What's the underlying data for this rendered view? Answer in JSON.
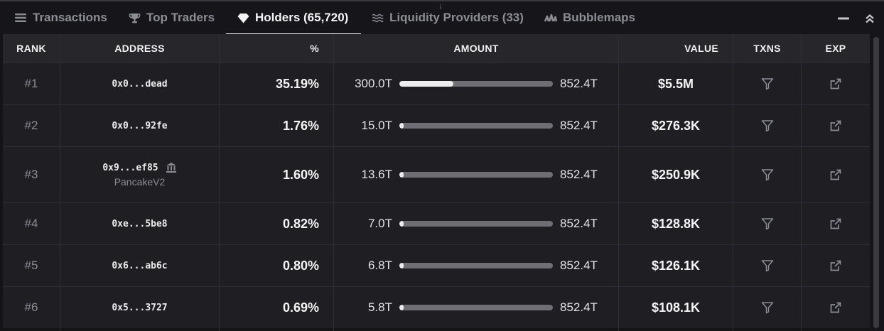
{
  "tabs": [
    {
      "label": "Transactions",
      "icon": "list-icon"
    },
    {
      "label": "Top Traders",
      "icon": "trophy-icon"
    },
    {
      "label": "Holders (65,720)",
      "icon": "diamond-icon"
    },
    {
      "label": "Liquidity Providers (33)",
      "icon": "waves-icon"
    },
    {
      "label": "Bubblemaps",
      "icon": "bubblemaps-icon"
    }
  ],
  "active_tab": "Holders (65,720)",
  "drag_handle": "↓",
  "columns": {
    "rank": "RANK",
    "address": "ADDRESS",
    "percent": "%",
    "amount": "AMOUNT",
    "value": "VALUE",
    "txns": "TXNS",
    "exp": "EXP"
  },
  "rows": [
    {
      "rank": "#1",
      "address": "0x0...dead",
      "tag": "",
      "percent": "35.19%",
      "amount": "300.0T",
      "total": "852.4T",
      "fill": 0.352,
      "value": "$5.5M"
    },
    {
      "rank": "#2",
      "address": "0x0...92fe",
      "tag": "",
      "percent": "1.76%",
      "amount": "15.0T",
      "total": "852.4T",
      "fill": 0.018,
      "value": "$276.3K"
    },
    {
      "rank": "#3",
      "address": "0x9...ef85",
      "tag": "PancakeV2",
      "percent": "1.60%",
      "amount": "13.6T",
      "total": "852.4T",
      "fill": 0.016,
      "value": "$250.9K"
    },
    {
      "rank": "#4",
      "address": "0xe...5be8",
      "tag": "",
      "percent": "0.82%",
      "amount": "7.0T",
      "total": "852.4T",
      "fill": 0.008,
      "value": "$128.8K"
    },
    {
      "rank": "#5",
      "address": "0x6...ab6c",
      "tag": "",
      "percent": "0.80%",
      "amount": "6.8T",
      "total": "852.4T",
      "fill": 0.008,
      "value": "$126.1K"
    },
    {
      "rank": "#6",
      "address": "0x5...3727",
      "tag": "",
      "percent": "0.69%",
      "amount": "5.8T",
      "total": "852.4T",
      "fill": 0.007,
      "value": "$108.1K"
    }
  ]
}
